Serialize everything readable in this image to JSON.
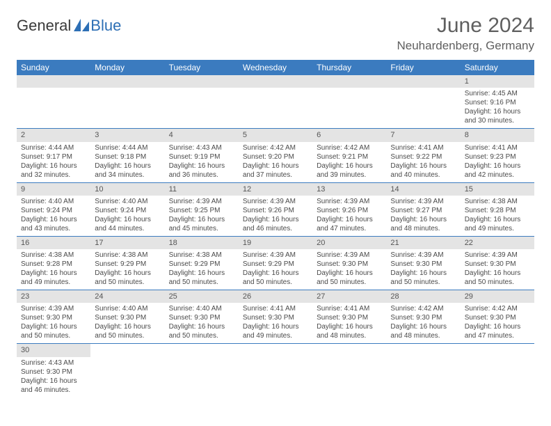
{
  "logo": {
    "dark": "General",
    "blue": "Blue"
  },
  "title": {
    "month": "June 2024",
    "location": "Neuhardenberg, Germany"
  },
  "dayHeaders": [
    "Sunday",
    "Monday",
    "Tuesday",
    "Wednesday",
    "Thursday",
    "Friday",
    "Saturday"
  ],
  "colors": {
    "headerBg": "#3b7bbf",
    "dayNumBg": "#e4e4e4",
    "text": "#4a4a4a",
    "titleText": "#5f5f5f"
  },
  "weeks": [
    [
      null,
      null,
      null,
      null,
      null,
      null,
      {
        "n": "1",
        "sr": "4:45 AM",
        "ss": "9:16 PM",
        "dl": "16 hours and 30 minutes."
      }
    ],
    [
      {
        "n": "2",
        "sr": "4:44 AM",
        "ss": "9:17 PM",
        "dl": "16 hours and 32 minutes."
      },
      {
        "n": "3",
        "sr": "4:44 AM",
        "ss": "9:18 PM",
        "dl": "16 hours and 34 minutes."
      },
      {
        "n": "4",
        "sr": "4:43 AM",
        "ss": "9:19 PM",
        "dl": "16 hours and 36 minutes."
      },
      {
        "n": "5",
        "sr": "4:42 AM",
        "ss": "9:20 PM",
        "dl": "16 hours and 37 minutes."
      },
      {
        "n": "6",
        "sr": "4:42 AM",
        "ss": "9:21 PM",
        "dl": "16 hours and 39 minutes."
      },
      {
        "n": "7",
        "sr": "4:41 AM",
        "ss": "9:22 PM",
        "dl": "16 hours and 40 minutes."
      },
      {
        "n": "8",
        "sr": "4:41 AM",
        "ss": "9:23 PM",
        "dl": "16 hours and 42 minutes."
      }
    ],
    [
      {
        "n": "9",
        "sr": "4:40 AM",
        "ss": "9:24 PM",
        "dl": "16 hours and 43 minutes."
      },
      {
        "n": "10",
        "sr": "4:40 AM",
        "ss": "9:24 PM",
        "dl": "16 hours and 44 minutes."
      },
      {
        "n": "11",
        "sr": "4:39 AM",
        "ss": "9:25 PM",
        "dl": "16 hours and 45 minutes."
      },
      {
        "n": "12",
        "sr": "4:39 AM",
        "ss": "9:26 PM",
        "dl": "16 hours and 46 minutes."
      },
      {
        "n": "13",
        "sr": "4:39 AM",
        "ss": "9:26 PM",
        "dl": "16 hours and 47 minutes."
      },
      {
        "n": "14",
        "sr": "4:39 AM",
        "ss": "9:27 PM",
        "dl": "16 hours and 48 minutes."
      },
      {
        "n": "15",
        "sr": "4:38 AM",
        "ss": "9:28 PM",
        "dl": "16 hours and 49 minutes."
      }
    ],
    [
      {
        "n": "16",
        "sr": "4:38 AM",
        "ss": "9:28 PM",
        "dl": "16 hours and 49 minutes."
      },
      {
        "n": "17",
        "sr": "4:38 AM",
        "ss": "9:29 PM",
        "dl": "16 hours and 50 minutes."
      },
      {
        "n": "18",
        "sr": "4:38 AM",
        "ss": "9:29 PM",
        "dl": "16 hours and 50 minutes."
      },
      {
        "n": "19",
        "sr": "4:39 AM",
        "ss": "9:29 PM",
        "dl": "16 hours and 50 minutes."
      },
      {
        "n": "20",
        "sr": "4:39 AM",
        "ss": "9:30 PM",
        "dl": "16 hours and 50 minutes."
      },
      {
        "n": "21",
        "sr": "4:39 AM",
        "ss": "9:30 PM",
        "dl": "16 hours and 50 minutes."
      },
      {
        "n": "22",
        "sr": "4:39 AM",
        "ss": "9:30 PM",
        "dl": "16 hours and 50 minutes."
      }
    ],
    [
      {
        "n": "23",
        "sr": "4:39 AM",
        "ss": "9:30 PM",
        "dl": "16 hours and 50 minutes."
      },
      {
        "n": "24",
        "sr": "4:40 AM",
        "ss": "9:30 PM",
        "dl": "16 hours and 50 minutes."
      },
      {
        "n": "25",
        "sr": "4:40 AM",
        "ss": "9:30 PM",
        "dl": "16 hours and 50 minutes."
      },
      {
        "n": "26",
        "sr": "4:41 AM",
        "ss": "9:30 PM",
        "dl": "16 hours and 49 minutes."
      },
      {
        "n": "27",
        "sr": "4:41 AM",
        "ss": "9:30 PM",
        "dl": "16 hours and 48 minutes."
      },
      {
        "n": "28",
        "sr": "4:42 AM",
        "ss": "9:30 PM",
        "dl": "16 hours and 48 minutes."
      },
      {
        "n": "29",
        "sr": "4:42 AM",
        "ss": "9:30 PM",
        "dl": "16 hours and 47 minutes."
      }
    ],
    [
      {
        "n": "30",
        "sr": "4:43 AM",
        "ss": "9:30 PM",
        "dl": "16 hours and 46 minutes."
      },
      null,
      null,
      null,
      null,
      null,
      null
    ]
  ],
  "labels": {
    "sunrise": "Sunrise:",
    "sunset": "Sunset:",
    "daylight": "Daylight:"
  }
}
